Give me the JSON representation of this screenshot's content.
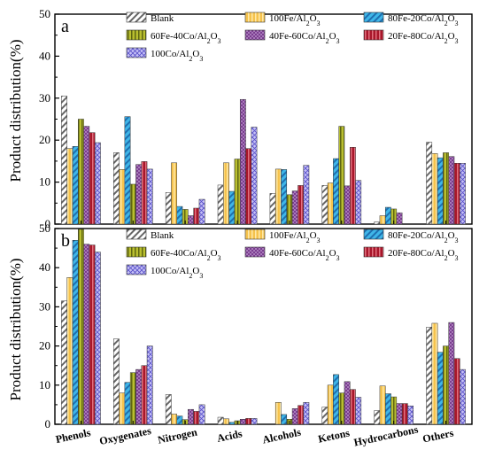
{
  "chart_data": {
    "ylabel": "Product distribution(%)",
    "legend": [
      {
        "name": "Blank",
        "color": "#ffffff",
        "pattern": "hatch-dark"
      },
      {
        "name": "100Fe/Al2O3",
        "color": "#f5c24c",
        "pattern": "vstripe"
      },
      {
        "name": "80Fe-20Co/Al2O3",
        "color": "#3fb6e8",
        "pattern": "hatch-blue"
      },
      {
        "name": "60Fe-40Co/Al2O3",
        "color": "#b9bf2f",
        "pattern": "vstripe"
      },
      {
        "name": "40Fe-60Co/Al2O3",
        "color": "#7a3d8f",
        "pattern": "dots"
      },
      {
        "name": "20Fe-80Co/Al2O3",
        "color": "#a8162a",
        "pattern": "vstripe"
      },
      {
        "name": "100Co/Al2O3",
        "color": "#a39cf0",
        "pattern": "cross"
      }
    ],
    "panels": [
      {
        "label": "a",
        "type": "bar",
        "categories": [
          "Phenols",
          "Oxygenates",
          "Nitrogen",
          "Acids",
          "Alcohols",
          "Ketons",
          "Hydrocarbons",
          "Others"
        ],
        "ylim": [
          0,
          50
        ],
        "yticks": [
          0,
          10,
          20,
          30,
          40,
          50
        ],
        "series": [
          {
            "name": "Blank",
            "values": [
              30.5,
              17.0,
              7.5,
              9.3,
              7.3,
              9.2,
              0.5,
              19.5
            ]
          },
          {
            "name": "100Fe/Al2O3",
            "values": [
              18.0,
              13.0,
              14.6,
              14.6,
              13.1,
              9.8,
              2.0,
              16.8
            ]
          },
          {
            "name": "80Fe-20Co/Al2O3",
            "values": [
              18.5,
              25.6,
              4.2,
              7.8,
              13.0,
              15.6,
              4.0,
              15.8
            ]
          },
          {
            "name": "60Fe-40Co/Al2O3",
            "values": [
              25.0,
              9.5,
              3.5,
              15.5,
              7.0,
              23.3,
              3.6,
              17.0
            ]
          },
          {
            "name": "40Fe-60Co/Al2O3",
            "values": [
              23.3,
              14.2,
              2.0,
              29.7,
              7.9,
              9.1,
              2.7,
              16.1
            ]
          },
          {
            "name": "20Fe-80Co/Al2O3",
            "values": [
              21.8,
              14.9,
              3.8,
              18.0,
              9.2,
              18.3,
              0.0,
              14.5
            ]
          },
          {
            "name": "100Co/Al2O3",
            "values": [
              19.4,
              13.1,
              5.9,
              23.1,
              14.0,
              10.4,
              0.0,
              14.5
            ]
          }
        ]
      },
      {
        "label": "b",
        "type": "bar",
        "categories": [
          "Phenols",
          "Oxygenates",
          "Nitrogen",
          "Acids",
          "Alcohols",
          "Ketons",
          "Hydrocarbons",
          "Others"
        ],
        "ylim": [
          0,
          50
        ],
        "yticks": [
          0,
          10,
          20,
          30,
          40,
          50
        ],
        "series": [
          {
            "name": "Blank",
            "values": [
              31.5,
              21.8,
              7.6,
              1.8,
              0.0,
              4.4,
              3.5,
              24.8
            ]
          },
          {
            "name": "100Fe/Al2O3",
            "values": [
              37.5,
              8.0,
              2.6,
              1.4,
              5.6,
              10.0,
              9.8,
              25.8
            ]
          },
          {
            "name": "80Fe-20Co/Al2O3",
            "values": [
              47.0,
              10.7,
              2.1,
              0.5,
              2.5,
              12.7,
              7.8,
              18.4
            ]
          },
          {
            "name": "60Fe-40Co/Al2O3",
            "values": [
              49.8,
              13.2,
              1.2,
              0.9,
              1.3,
              8.0,
              7.0,
              20.0
            ]
          },
          {
            "name": "40Fe-60Co/Al2O3",
            "values": [
              46.0,
              14.0,
              3.8,
              1.3,
              4.0,
              10.9,
              5.3,
              26.0
            ]
          },
          {
            "name": "20Fe-80Co/Al2O3",
            "values": [
              45.8,
              15.0,
              3.3,
              1.5,
              4.8,
              8.9,
              5.3,
              16.8
            ]
          },
          {
            "name": "100Co/Al2O3",
            "values": [
              44.0,
              20.0,
              5.0,
              1.5,
              5.6,
              6.9,
              4.7,
              14.0
            ]
          }
        ]
      }
    ]
  }
}
